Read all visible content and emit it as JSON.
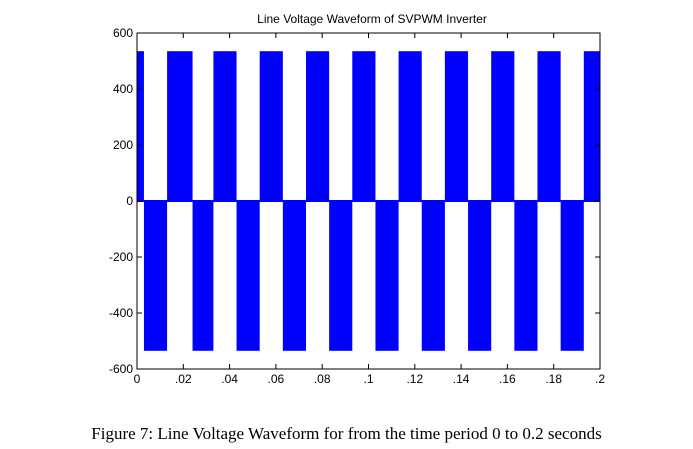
{
  "chart_data": {
    "type": "line",
    "title": "Line Voltage Waveform of SVPWM Inverter",
    "xlabel": "",
    "ylabel": "",
    "xlim": [
      0,
      0.2
    ],
    "ylim": [
      -600,
      600
    ],
    "x_ticks": [
      "0",
      ".02",
      ".04",
      ".06",
      ".08",
      ".1",
      ".12",
      ".14",
      ".16",
      ".18",
      ".2"
    ],
    "y_ticks": [
      "600",
      "400",
      "200",
      "0",
      "-200",
      "-400",
      "-600"
    ],
    "grid": false,
    "series": [
      {
        "color": "#0000ff",
        "period": 0.02,
        "peak_positive": 535,
        "peak_negative": -535,
        "zero_level": 0,
        "positive_pulses": [
          [
            0.0,
            0.003
          ],
          [
            0.013,
            0.024
          ],
          [
            0.033,
            0.043
          ],
          [
            0.053,
            0.063
          ],
          [
            0.073,
            0.083
          ],
          [
            0.093,
            0.103
          ],
          [
            0.113,
            0.123
          ],
          [
            0.133,
            0.143
          ],
          [
            0.153,
            0.163
          ],
          [
            0.173,
            0.183
          ],
          [
            0.193,
            0.2
          ]
        ],
        "negative_pulses": [
          [
            0.003,
            0.013
          ],
          [
            0.024,
            0.033
          ],
          [
            0.043,
            0.053
          ],
          [
            0.063,
            0.073
          ],
          [
            0.083,
            0.093
          ],
          [
            0.103,
            0.113
          ],
          [
            0.123,
            0.133
          ],
          [
            0.143,
            0.153
          ],
          [
            0.163,
            0.173
          ],
          [
            0.183,
            0.193
          ]
        ]
      }
    ]
  },
  "caption": "Figure 7: Line Voltage Waveform for  from the time period 0 to 0.2 seconds"
}
